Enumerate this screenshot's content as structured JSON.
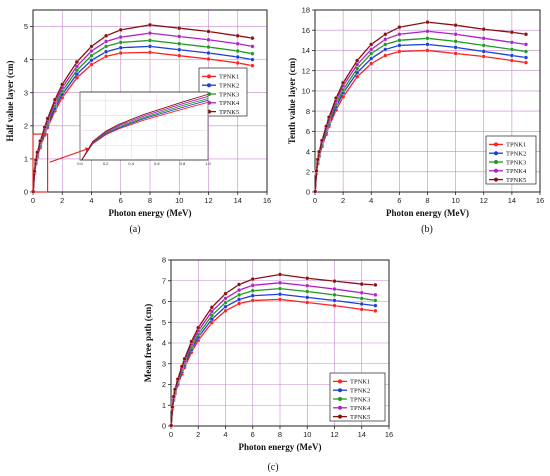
{
  "colors": {
    "grid": "#c58ad0",
    "axis": "#222222",
    "inset_box": "#e11a1a"
  },
  "chart_data": [
    {
      "panel": "(a)",
      "type": "line",
      "xlabel": "Photon energy (MeV)",
      "ylabel": "Half value layer (cm)",
      "xlim": [
        0,
        16
      ],
      "ylim": [
        0,
        5.5
      ],
      "xticks": [
        0,
        2,
        4,
        6,
        8,
        10,
        12,
        14,
        16
      ],
      "yticks": [
        0,
        1,
        2,
        3,
        4,
        5
      ],
      "grid": true,
      "legend": "center-right",
      "x": [
        0.015,
        0.1,
        0.2,
        0.3,
        0.5,
        0.8,
        1,
        1.5,
        2,
        3,
        4,
        5,
        6,
        8,
        10,
        12,
        14,
        15
      ],
      "series": [
        {
          "name": "TPNK1",
          "color": "#ff2020",
          "values": [
            0.01,
            0.55,
            0.85,
            1.05,
            1.35,
            1.72,
            1.95,
            2.45,
            2.85,
            3.45,
            3.85,
            4.1,
            4.2,
            4.22,
            4.12,
            4.02,
            3.9,
            3.82
          ]
        },
        {
          "name": "TPNK2",
          "color": "#1a3fd6",
          "values": [
            0.01,
            0.57,
            0.88,
            1.08,
            1.4,
            1.78,
            2.02,
            2.53,
            2.95,
            3.56,
            3.98,
            4.24,
            4.36,
            4.4,
            4.3,
            4.2,
            4.08,
            4.0
          ]
        },
        {
          "name": "TPNK3",
          "color": "#1f9a1f",
          "values": [
            0.01,
            0.59,
            0.91,
            1.12,
            1.44,
            1.84,
            2.08,
            2.62,
            3.05,
            3.68,
            4.12,
            4.4,
            4.52,
            4.58,
            4.48,
            4.38,
            4.26,
            4.18
          ]
        },
        {
          "name": "TPNK4",
          "color": "#b020c8",
          "values": [
            0.01,
            0.61,
            0.94,
            1.16,
            1.49,
            1.9,
            2.15,
            2.7,
            3.15,
            3.8,
            4.26,
            4.55,
            4.68,
            4.8,
            4.7,
            4.6,
            4.48,
            4.4
          ]
        },
        {
          "name": "TPNK5",
          "color": "#8a1010",
          "values": [
            0.01,
            0.63,
            0.97,
            1.2,
            1.54,
            1.96,
            2.22,
            2.79,
            3.25,
            3.93,
            4.4,
            4.72,
            4.9,
            5.05,
            4.95,
            4.85,
            4.72,
            4.65
          ]
        }
      ],
      "inset": {
        "xlim": [
          0,
          1.0
        ],
        "ylim": [
          0,
          2.3
        ],
        "xticks": [
          "0.0",
          "0.2",
          "0.4",
          "0.6",
          "0.8",
          "1.0"
        ]
      }
    },
    {
      "panel": "(b)",
      "type": "line",
      "xlabel": "Photon energy (MeV)",
      "ylabel": "Tenth value layer (cm)",
      "xlim": [
        0,
        16
      ],
      "ylim": [
        0,
        18
      ],
      "xticks": [
        0,
        2,
        4,
        6,
        8,
        10,
        12,
        14,
        16
      ],
      "yticks": [
        0,
        2,
        4,
        6,
        8,
        10,
        12,
        14,
        16,
        18
      ],
      "grid": true,
      "legend": "bottom-right",
      "x": [
        0.015,
        0.1,
        0.2,
        0.3,
        0.5,
        0.8,
        1,
        1.5,
        2,
        3,
        4,
        5,
        6,
        8,
        10,
        12,
        14,
        15
      ],
      "series": [
        {
          "name": "TPNK1",
          "color": "#ff2020",
          "values": [
            0.05,
            1.8,
            2.8,
            3.5,
            4.5,
            5.7,
            6.5,
            8.1,
            9.4,
            11.4,
            12.7,
            13.5,
            13.9,
            14.0,
            13.7,
            13.4,
            13.0,
            12.8
          ]
        },
        {
          "name": "TPNK2",
          "color": "#1a3fd6",
          "values": [
            0.05,
            1.88,
            2.92,
            3.6,
            4.65,
            5.9,
            6.7,
            8.4,
            9.8,
            11.8,
            13.2,
            14.1,
            14.5,
            14.6,
            14.3,
            13.9,
            13.5,
            13.3
          ]
        },
        {
          "name": "TPNK3",
          "color": "#1f9a1f",
          "values": [
            0.05,
            1.95,
            3.02,
            3.72,
            4.8,
            6.1,
            6.9,
            8.7,
            10.1,
            12.2,
            13.7,
            14.6,
            15.0,
            15.2,
            14.9,
            14.5,
            14.1,
            13.9
          ]
        },
        {
          "name": "TPNK4",
          "color": "#b020c8",
          "values": [
            0.05,
            2.02,
            3.12,
            3.85,
            4.95,
            6.3,
            7.15,
            9.0,
            10.5,
            12.6,
            14.1,
            15.1,
            15.6,
            15.9,
            15.6,
            15.2,
            14.8,
            14.6
          ]
        },
        {
          "name": "TPNK5",
          "color": "#8a1010",
          "values": [
            0.05,
            2.1,
            3.22,
            3.98,
            5.1,
            6.5,
            7.4,
            9.3,
            10.8,
            13.0,
            14.6,
            15.6,
            16.3,
            16.8,
            16.5,
            16.1,
            15.8,
            15.6
          ]
        }
      ]
    },
    {
      "panel": "(c)",
      "type": "line",
      "xlabel": "Photon energy (MeV)",
      "ylabel": "Mean free path (cm)",
      "xlim": [
        0,
        16
      ],
      "ylim": [
        0,
        8
      ],
      "xticks": [
        0,
        2,
        4,
        6,
        8,
        10,
        12,
        14,
        16
      ],
      "yticks": [
        0,
        1,
        2,
        3,
        4,
        5,
        6,
        7,
        8
      ],
      "grid": true,
      "legend": "bottom-right",
      "x": [
        0.015,
        0.1,
        0.2,
        0.3,
        0.5,
        0.8,
        1,
        1.5,
        2,
        3,
        4,
        5,
        6,
        8,
        10,
        12,
        14,
        15
      ],
      "series": [
        {
          "name": "TPNK1",
          "color": "#ff2020",
          "values": [
            0.02,
            0.8,
            1.25,
            1.55,
            1.98,
            2.5,
            2.82,
            3.55,
            4.12,
            4.98,
            5.55,
            5.9,
            6.05,
            6.1,
            5.95,
            5.8,
            5.62,
            5.55
          ]
        },
        {
          "name": "TPNK2",
          "color": "#1a3fd6",
          "values": [
            0.02,
            0.83,
            1.29,
            1.6,
            2.05,
            2.6,
            2.93,
            3.68,
            4.28,
            5.15,
            5.75,
            6.1,
            6.28,
            6.35,
            6.2,
            6.05,
            5.88,
            5.8
          ]
        },
        {
          "name": "TPNK3",
          "color": "#1f9a1f",
          "values": [
            0.02,
            0.86,
            1.33,
            1.66,
            2.12,
            2.69,
            3.03,
            3.8,
            4.42,
            5.33,
            5.95,
            6.32,
            6.52,
            6.62,
            6.48,
            6.32,
            6.15,
            6.05
          ]
        },
        {
          "name": "TPNK4",
          "color": "#b020c8",
          "values": [
            0.02,
            0.89,
            1.38,
            1.71,
            2.19,
            2.78,
            3.13,
            3.94,
            4.58,
            5.52,
            6.15,
            6.55,
            6.78,
            6.9,
            6.76,
            6.6,
            6.42,
            6.32
          ]
        },
        {
          "name": "TPNK5",
          "color": "#8a1010",
          "values": [
            0.02,
            0.92,
            1.42,
            1.77,
            2.26,
            2.87,
            3.24,
            4.07,
            4.74,
            5.72,
            6.38,
            6.82,
            7.08,
            7.3,
            7.12,
            6.98,
            6.84,
            6.8
          ]
        }
      ]
    }
  ]
}
